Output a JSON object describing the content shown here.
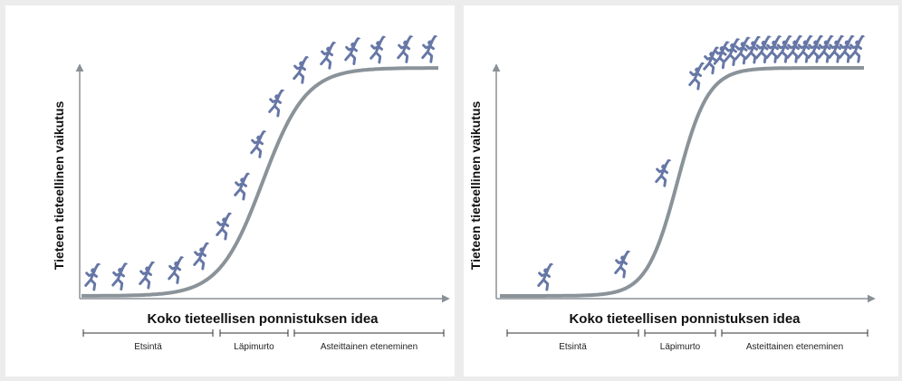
{
  "panels": [
    {
      "y_label": "Tieteen tieteellinen vaikutus",
      "x_label": "Koko tieteellisen ponnistuksen idea",
      "phases": [
        "Etsintä",
        "Läpimurto",
        "Asteittainen eteneminen"
      ]
    },
    {
      "y_label": "Tieteen tieteellinen vaikutus",
      "x_label": "Koko tieteellisen ponnistuksen idea",
      "phases": [
        "Etsintä",
        "Läpimurto",
        "Asteittainen eteneminen"
      ]
    }
  ]
}
